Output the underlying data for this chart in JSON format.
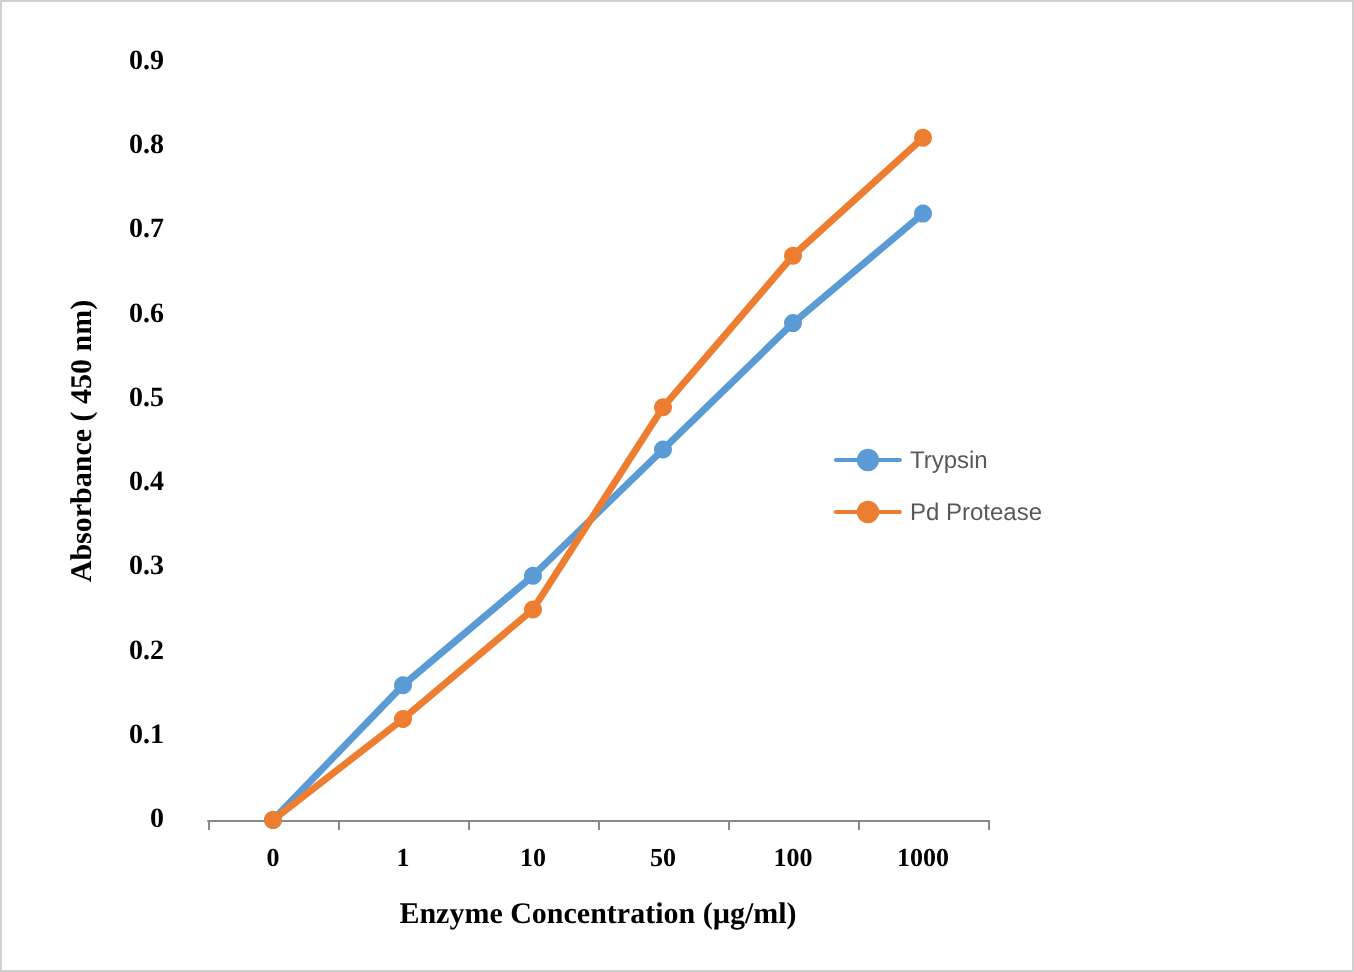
{
  "chart_data": {
    "type": "line",
    "xlabel": "Enzyme Concentration (µg/ml)",
    "ylabel": "Absorbance ( 450 nm)",
    "categories": [
      "0",
      "1",
      "10",
      "50",
      "100",
      "1000"
    ],
    "series": [
      {
        "name": "Trypsin",
        "color": "#5b9bd5",
        "values": [
          0,
          0.16,
          0.29,
          0.44,
          0.59,
          0.72
        ]
      },
      {
        "name": "Pd Protease",
        "color": "#ed7d31",
        "values": [
          0,
          0.12,
          0.25,
          0.49,
          0.67,
          0.81
        ]
      }
    ],
    "ylim": [
      0,
      0.9
    ],
    "yticks": [
      0,
      0.1,
      0.2,
      0.3,
      0.4,
      0.5,
      0.6,
      0.7,
      0.8,
      0.9
    ],
    "grid": false,
    "legend": "right",
    "marker": "circle",
    "line_style": "solid"
  }
}
